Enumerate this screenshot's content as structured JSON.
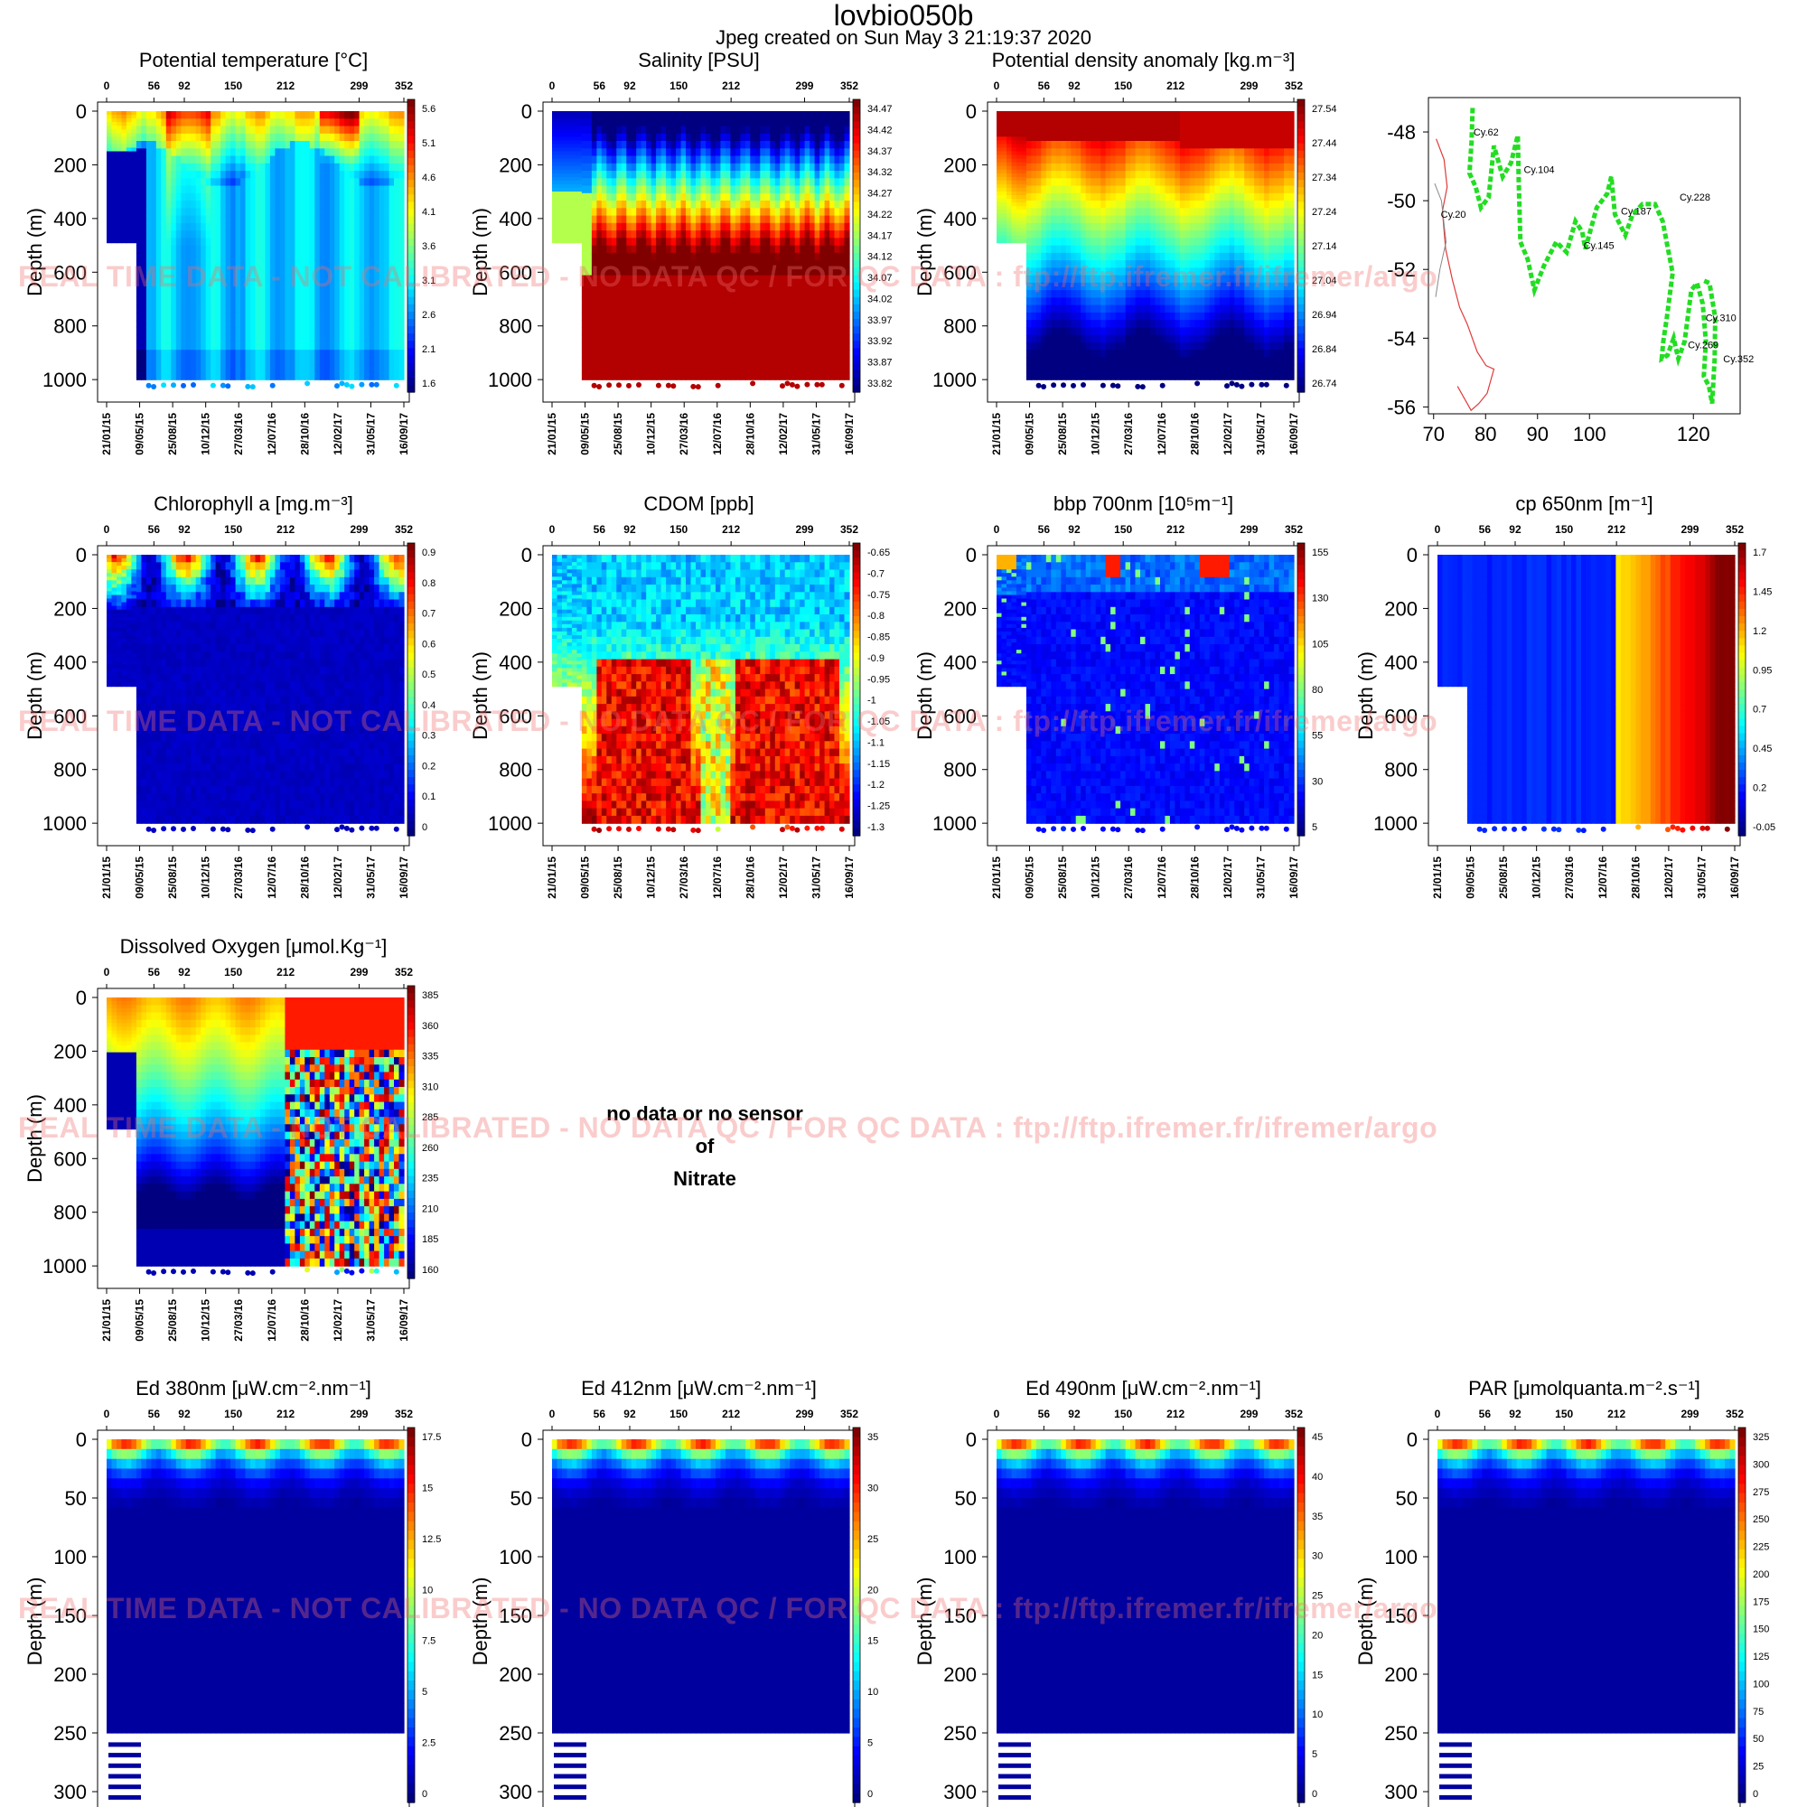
{
  "page": {
    "title": "lovbio050b",
    "subtitle": "Jpeg created on  Sun May  3 21:19:37 2020",
    "watermark": "REAL TIME DATA - NOT CALIBRATED - NO DATA QC   /  FOR QC DATA : ftp://ftp.ifremer.fr/ifremer/argo",
    "no_data": {
      "line1": "no data or no sensor",
      "line2": "of",
      "line3": "Nitrate"
    }
  },
  "chart_data": [
    {
      "id": "temp",
      "type": "heatmap",
      "title": "Potential temperature [°C]",
      "ylabel": "Depth (m)",
      "ylim": [
        0,
        1050
      ],
      "y_ticks": [
        "0",
        "200",
        "400",
        "600",
        "800",
        "1000"
      ],
      "top_ticks": [
        "0",
        "56",
        "92",
        "150",
        "212",
        "299",
        "352"
      ],
      "x_dates": [
        "21/01/15",
        "09/05/15",
        "25/08/15",
        "10/12/15",
        "27/03/16",
        "12/07/16",
        "28/10/16",
        "12/02/17",
        "31/05/17",
        "16/09/17"
      ],
      "colorbar": [
        "5.6",
        "5.1",
        "4.6",
        "4.1",
        "3.6",
        "3.1",
        "2.6",
        "2.1",
        "1.6"
      ],
      "pattern": "temp"
    },
    {
      "id": "sal",
      "type": "heatmap",
      "title": "Salinity [PSU]",
      "ylabel": "Depth (m)",
      "ylim": [
        0,
        1050
      ],
      "y_ticks": [
        "0",
        "200",
        "400",
        "600",
        "800",
        "1000"
      ],
      "top_ticks": [
        "0",
        "56",
        "92",
        "150",
        "212",
        "299",
        "352"
      ],
      "x_dates": [
        "21/01/15",
        "09/05/15",
        "25/08/15",
        "10/12/15",
        "27/03/16",
        "12/07/16",
        "28/10/16",
        "12/02/17",
        "31/05/17",
        "16/09/17"
      ],
      "colorbar": [
        "34.47",
        "34.42",
        "34.37",
        "34.32",
        "34.27",
        "34.22",
        "34.17",
        "34.12",
        "34.07",
        "34.02",
        "33.97",
        "33.92",
        "33.87",
        "33.82"
      ],
      "pattern": "sal"
    },
    {
      "id": "dens",
      "type": "heatmap",
      "title": "Potential density anomaly [kg.m⁻³]",
      "ylabel": "Depth (m)",
      "ylim": [
        0,
        1050
      ],
      "y_ticks": [
        "0",
        "200",
        "400",
        "600",
        "800",
        "1000"
      ],
      "top_ticks": [
        "0",
        "56",
        "92",
        "150",
        "212",
        "299",
        "352"
      ],
      "x_dates": [
        "21/01/15",
        "09/05/15",
        "25/08/15",
        "10/12/15",
        "27/03/16",
        "12/07/16",
        "28/10/16",
        "12/02/17",
        "31/05/17",
        "16/09/17"
      ],
      "colorbar": [
        "27.54",
        "27.44",
        "27.34",
        "27.24",
        "27.14",
        "27.04",
        "26.94",
        "26.84",
        "26.74"
      ],
      "pattern": "dens"
    },
    {
      "id": "map",
      "type": "scatter",
      "x_ticks": [
        "70",
        "80",
        "90",
        "100",
        "120"
      ],
      "xlim": [
        69,
        129
      ],
      "y_ticks": [
        "-48",
        "-50",
        "-52",
        "-54",
        "-56"
      ],
      "ylim": [
        -56.2,
        -47.0
      ],
      "track": [
        [
          77.5,
          -47.3
        ],
        [
          77.3,
          -48.3
        ],
        [
          76.9,
          -49.2
        ],
        [
          78.1,
          -49.6
        ],
        [
          79.1,
          -50.2
        ],
        [
          80.6,
          -49.9
        ],
        [
          81.6,
          -48.4
        ],
        [
          83.3,
          -49.3
        ],
        [
          84.9,
          -48.9
        ],
        [
          86.2,
          -48.1
        ],
        [
          86.4,
          -49.5
        ],
        [
          86.7,
          -51.2
        ],
        [
          88.1,
          -51.7
        ],
        [
          89.4,
          -52.6
        ],
        [
          91.2,
          -51.9
        ],
        [
          93.6,
          -51.2
        ],
        [
          95.6,
          -51.5
        ],
        [
          97.3,
          -50.6
        ],
        [
          98.6,
          -50.9
        ],
        [
          99.2,
          -51.4
        ],
        [
          101.4,
          -50.2
        ],
        [
          103.4,
          -49.8
        ],
        [
          104.2,
          -49.3
        ],
        [
          104.9,
          -50.4
        ],
        [
          106.9,
          -51.0
        ],
        [
          108.3,
          -50.4
        ],
        [
          110.2,
          -50.1
        ],
        [
          112.6,
          -50.1
        ],
        [
          114.1,
          -50.6
        ],
        [
          115.1,
          -51.4
        ],
        [
          116.0,
          -52.1
        ],
        [
          114.9,
          -53.4
        ],
        [
          114.2,
          -54.1
        ],
        [
          113.9,
          -54.6
        ],
        [
          115.0,
          -54.5
        ],
        [
          116.2,
          -54.0
        ],
        [
          117.1,
          -54.6
        ],
        [
          118.3,
          -54.1
        ],
        [
          119.6,
          -52.6
        ],
        [
          120.7,
          -52.4
        ],
        [
          121.8,
          -53.0
        ],
        [
          122.4,
          -54.1
        ],
        [
          122.0,
          -55.1
        ],
        [
          123.0,
          -55.4
        ],
        [
          123.6,
          -55.9
        ],
        [
          124.1,
          -54.6
        ],
        [
          124.2,
          -53.4
        ],
        [
          123.1,
          -52.4
        ],
        [
          121.6,
          -52.3
        ]
      ],
      "labels": [
        {
          "text": "Cy.62",
          "x": 80.1,
          "y": -48.1
        },
        {
          "text": "Cy.104",
          "x": 90.3,
          "y": -49.2
        },
        {
          "text": "Cy.20",
          "x": 73.8,
          "y": -50.5
        },
        {
          "text": "Cy.187",
          "x": 109.0,
          "y": -50.4
        },
        {
          "text": "Cy.145",
          "x": 101.8,
          "y": -51.4
        },
        {
          "text": "Cy.228",
          "x": 120.3,
          "y": -50.0
        },
        {
          "text": "Cy.310",
          "x": 125.3,
          "y": -53.5
        },
        {
          "text": "Cy.269",
          "x": 121.9,
          "y": -54.3
        },
        {
          "text": "Cy.352",
          "x": 128.7,
          "y": -54.7
        }
      ],
      "coast": [
        [
          70.5,
          -48.2
        ],
        [
          72.0,
          -48.8
        ],
        [
          72.6,
          -49.6
        ],
        [
          71.7,
          -50.3
        ],
        [
          72.3,
          -51.4
        ],
        [
          73.6,
          -52.3
        ],
        [
          75.0,
          -53.1
        ],
        [
          76.5,
          -53.6
        ],
        [
          78.4,
          -54.4
        ],
        [
          80.1,
          -54.8
        ],
        [
          81.6,
          -54.9
        ],
        [
          80.3,
          -55.6
        ],
        [
          78.7,
          -55.9
        ],
        [
          77.2,
          -56.1
        ],
        [
          74.6,
          -55.4
        ]
      ],
      "coast_color": "#e03a3a",
      "track_color": "#22dd22"
    },
    {
      "id": "chla",
      "type": "heatmap",
      "title": "Chlorophyll a [mg.m⁻³]",
      "ylabel": "Depth (m)",
      "ylim": [
        0,
        1050
      ],
      "y_ticks": [
        "0",
        "200",
        "400",
        "600",
        "800",
        "1000"
      ],
      "top_ticks": [
        "0",
        "56",
        "92",
        "150",
        "212",
        "299",
        "352"
      ],
      "x_dates": [
        "21/01/15",
        "09/05/15",
        "25/08/15",
        "10/12/15",
        "27/03/16",
        "12/07/16",
        "28/10/16",
        "12/02/17",
        "31/05/17",
        "16/09/17"
      ],
      "colorbar": [
        "0.9",
        "0.8",
        "0.7",
        "0.6",
        "0.5",
        "0.4",
        "0.3",
        "0.2",
        "0.1",
        "0"
      ],
      "pattern": "chla"
    },
    {
      "id": "cdom",
      "type": "heatmap",
      "title": "CDOM  [ppb]",
      "ylabel": "Depth (m)",
      "ylim": [
        0,
        1050
      ],
      "y_ticks": [
        "0",
        "200",
        "400",
        "600",
        "800",
        "1000"
      ],
      "top_ticks": [
        "0",
        "56",
        "92",
        "150",
        "212",
        "299",
        "352"
      ],
      "x_dates": [
        "21/01/15",
        "09/05/15",
        "25/08/15",
        "10/12/15",
        "27/03/16",
        "12/07/16",
        "28/10/16",
        "12/02/17",
        "31/05/17",
        "16/09/17"
      ],
      "colorbar": [
        "-0.65",
        "-0.7",
        "-0.75",
        "-0.8",
        "-0.85",
        "-0.9",
        "-0.95",
        "-1",
        "-1.05",
        "-1.1",
        "-1.15",
        "-1.2",
        "-1.25",
        "-1.3"
      ],
      "pattern": "cdom"
    },
    {
      "id": "bbp",
      "type": "heatmap",
      "title": "bbp 700nm [10⁵m⁻¹]",
      "ylabel": "Depth (m)",
      "ylim": [
        0,
        1050
      ],
      "y_ticks": [
        "0",
        "200",
        "400",
        "600",
        "800",
        "1000"
      ],
      "top_ticks": [
        "0",
        "56",
        "92",
        "150",
        "212",
        "299",
        "352"
      ],
      "x_dates": [
        "21/01/15",
        "09/05/15",
        "25/08/15",
        "10/12/15",
        "27/03/16",
        "12/07/16",
        "28/10/16",
        "12/02/17",
        "31/05/17",
        "16/09/17"
      ],
      "colorbar": [
        "155",
        "130",
        "105",
        "80",
        "55",
        "30",
        "5"
      ],
      "pattern": "bbp"
    },
    {
      "id": "cp",
      "type": "heatmap",
      "title": "cp 650nm [m⁻¹]",
      "ylabel": "Depth (m)",
      "ylim": [
        0,
        1050
      ],
      "y_ticks": [
        "0",
        "200",
        "400",
        "600",
        "800",
        "1000"
      ],
      "top_ticks": [
        "0",
        "56",
        "92",
        "150",
        "212",
        "299",
        "352"
      ],
      "x_dates": [
        "21/01/15",
        "09/05/15",
        "25/08/15",
        "10/12/15",
        "27/03/16",
        "12/07/16",
        "28/10/16",
        "12/02/17",
        "31/05/17",
        "16/09/17"
      ],
      "colorbar": [
        "1.7",
        "1.45",
        "1.2",
        "0.95",
        "0.7",
        "0.45",
        "0.2",
        "-0.05"
      ],
      "pattern": "cp"
    },
    {
      "id": "doxy",
      "type": "heatmap",
      "title": "Dissolved Oxygen [μmol.Kg⁻¹]",
      "ylabel": "Depth (m)",
      "ylim": [
        0,
        1050
      ],
      "y_ticks": [
        "0",
        "200",
        "400",
        "600",
        "800",
        "1000"
      ],
      "top_ticks": [
        "0",
        "56",
        "92",
        "150",
        "212",
        "299",
        "352"
      ],
      "x_dates": [
        "21/01/15",
        "09/05/15",
        "25/08/15",
        "10/12/15",
        "27/03/16",
        "12/07/16",
        "28/10/16",
        "12/02/17",
        "31/05/17",
        "16/09/17"
      ],
      "colorbar": [
        "385",
        "360",
        "335",
        "310",
        "285",
        "260",
        "235",
        "210",
        "185",
        "160"
      ],
      "pattern": "doxy"
    },
    {
      "id": "ed380",
      "type": "heatmap",
      "title": "Ed 380nm [μW.cm⁻².nm⁻¹]",
      "ylabel": "Depth (m)",
      "ylim": [
        0,
        310
      ],
      "y_ticks": [
        "0",
        "50",
        "100",
        "150",
        "200",
        "250",
        "300"
      ],
      "top_ticks": [
        "0",
        "56",
        "92",
        "150",
        "212",
        "299",
        "352"
      ],
      "x_dates": [
        "21/01/15",
        "09/05/15",
        "25/08/15",
        "10/12/15",
        "27/03/16",
        "12/07/16",
        "28/10/16",
        "12/02/17",
        "31/05/17",
        "16/09/17"
      ],
      "colorbar": [
        "17.5",
        "15",
        "12.5",
        "10",
        "7.5",
        "5",
        "2.5",
        "0"
      ],
      "pattern": "light"
    },
    {
      "id": "ed412",
      "type": "heatmap",
      "title": "Ed 412nm [μW.cm⁻².nm⁻¹]",
      "ylabel": "Depth (m)",
      "ylim": [
        0,
        310
      ],
      "y_ticks": [
        "0",
        "50",
        "100",
        "150",
        "200",
        "250",
        "300"
      ],
      "top_ticks": [
        "0",
        "56",
        "92",
        "150",
        "212",
        "299",
        "352"
      ],
      "x_dates": [
        "21/01/15",
        "09/05/15",
        "25/08/15",
        "10/12/15",
        "27/03/16",
        "12/07/16",
        "28/10/16",
        "12/02/17",
        "31/05/17",
        "16/09/17"
      ],
      "colorbar": [
        "35",
        "30",
        "25",
        "20",
        "15",
        "10",
        "5",
        "0"
      ],
      "pattern": "light"
    },
    {
      "id": "ed490",
      "type": "heatmap",
      "title": "Ed 490nm [μW.cm⁻².nm⁻¹]",
      "ylabel": "Depth (m)",
      "ylim": [
        0,
        310
      ],
      "y_ticks": [
        "0",
        "50",
        "100",
        "150",
        "200",
        "250",
        "300"
      ],
      "top_ticks": [
        "0",
        "56",
        "92",
        "150",
        "212",
        "299",
        "352"
      ],
      "x_dates": [
        "21/01/15",
        "09/05/15",
        "25/08/15",
        "10/12/15",
        "27/03/16",
        "12/07/16",
        "28/10/16",
        "12/02/17",
        "31/05/17",
        "16/09/17"
      ],
      "colorbar": [
        "45",
        "40",
        "35",
        "30",
        "25",
        "20",
        "15",
        "10",
        "5",
        "0"
      ],
      "pattern": "light"
    },
    {
      "id": "par",
      "type": "heatmap",
      "title": "PAR [μmolquanta.m⁻².s⁻¹]",
      "ylabel": "Depth (m)",
      "ylim": [
        0,
        310
      ],
      "y_ticks": [
        "0",
        "50",
        "100",
        "150",
        "200",
        "250",
        "300"
      ],
      "top_ticks": [
        "0",
        "56",
        "92",
        "150",
        "212",
        "299",
        "352"
      ],
      "x_dates": [
        "21/01/15",
        "09/05/15",
        "25/08/15",
        "10/12/15",
        "27/03/16",
        "12/07/16",
        "28/10/16",
        "12/02/17",
        "31/05/17",
        "16/09/17"
      ],
      "colorbar": [
        "325",
        "300",
        "275",
        "250",
        "225",
        "200",
        "175",
        "150",
        "125",
        "100",
        "75",
        "50",
        "25",
        "0"
      ],
      "pattern": "light"
    }
  ]
}
